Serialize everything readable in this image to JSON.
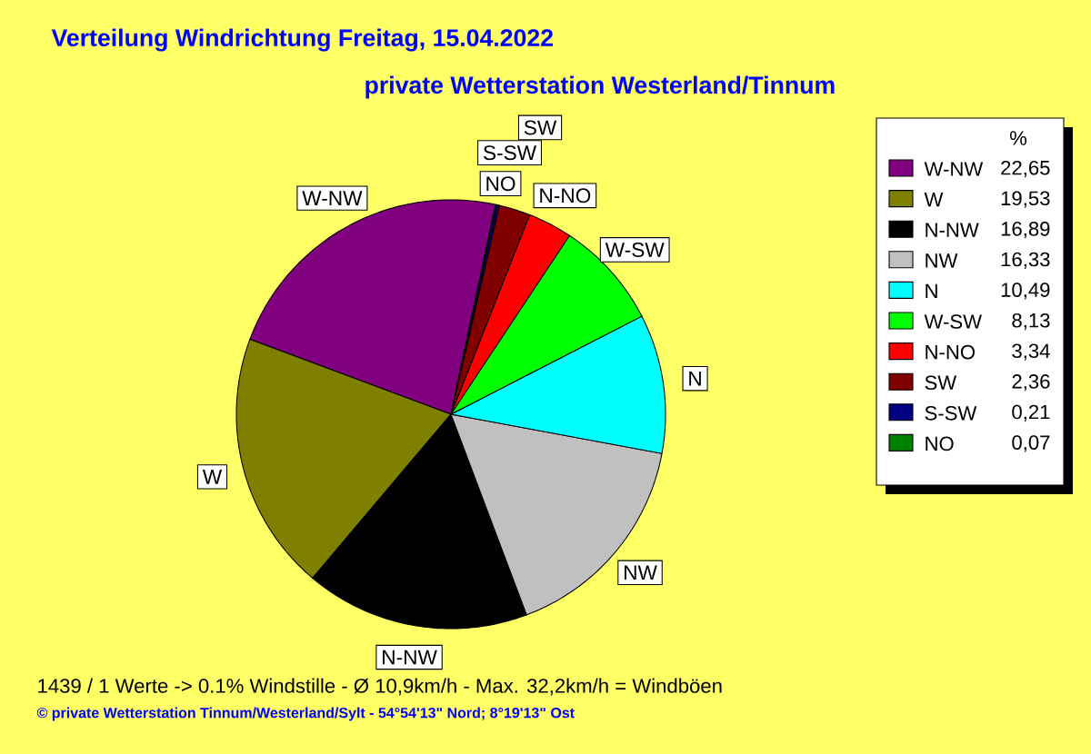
{
  "chart_data": {
    "type": "pie",
    "title": "Verteilung Windrichtung   Freitag, 15.04.2022",
    "subtitle": "private Wetterstation Westerland/Tinnum",
    "legend_title": "%",
    "legend": "right",
    "categories": [
      "W-NW",
      "W",
      "N-NW",
      "NW",
      "N",
      "W-SW",
      "N-NO",
      "SW",
      "S-SW",
      "NO"
    ],
    "values": [
      22.65,
      19.53,
      16.89,
      16.33,
      10.49,
      8.13,
      3.34,
      2.36,
      0.21,
      0.07
    ],
    "value_labels": [
      "22,65",
      "19,53",
      "16,89",
      "16,33",
      "10,49",
      "8,13",
      "3,34",
      "2,36",
      "0,21",
      "0,07"
    ],
    "colors": [
      "#800080",
      "#808000",
      "#000000",
      "#c0c0c0",
      "#00ffff",
      "#00ff00",
      "#ff0000",
      "#800000",
      "#000080",
      "#008000"
    ],
    "annotations": [
      "1439 / 1 Werte  -> 0.1% Windstille   -   Ø 10,9km/h  -  Max. 32,2km/h = Windböen",
      "© private Wetterstation Tinnum/Westerland/Sylt  -  54°54'13\" Nord; 8°19'13\" Ost"
    ]
  }
}
